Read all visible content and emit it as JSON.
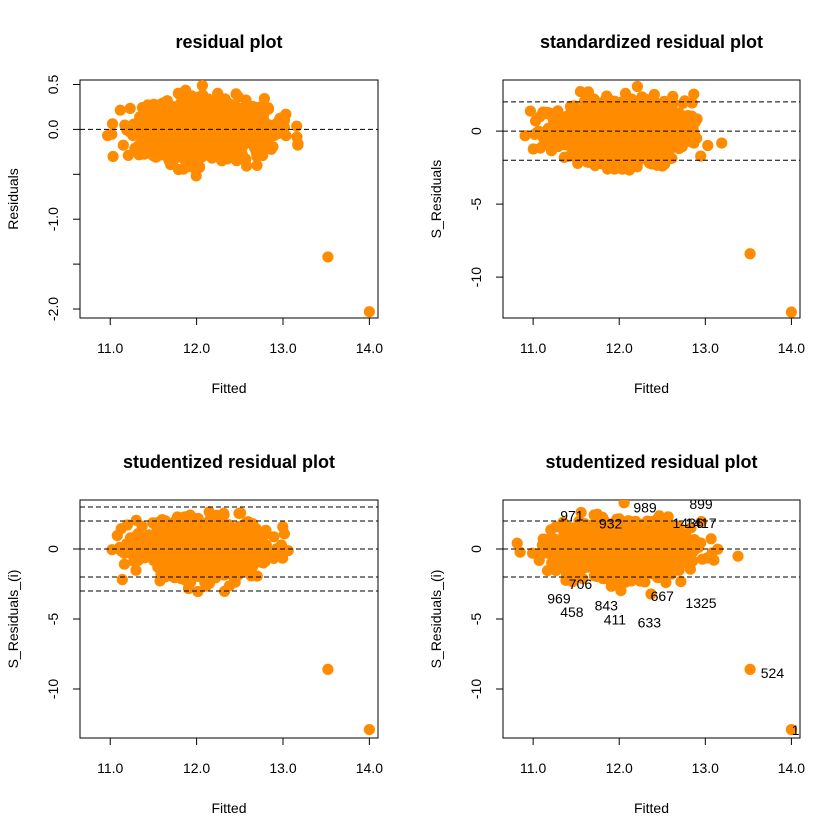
{
  "colors": {
    "point": "#ff8c00",
    "axis": "#000000",
    "refline": "#000000"
  },
  "chart_data": [
    {
      "type": "scatter",
      "title": "residual plot",
      "xlabel": "Fitted",
      "ylabel": "Residuals",
      "xlim": [
        10.65,
        14.1
      ],
      "ylim": [
        -2.1,
        0.55
      ],
      "xticks": [
        11.0,
        12.0,
        13.0,
        14.0
      ],
      "xtick_labels": [
        "11.0",
        "12.0",
        "13.0",
        "14.0"
      ],
      "yticks": [
        -2.0,
        -1.5,
        -1.0,
        -0.5,
        0.0,
        0.5
      ],
      "ytick_labels": [
        "-2.0",
        "",
        "-1.0",
        "",
        "0.0",
        "0.5"
      ],
      "hlines": [
        0
      ],
      "outliers": [
        {
          "x": 13.52,
          "y": -1.42
        },
        {
          "x": 14.0,
          "y": -2.03
        }
      ],
      "cloud": {
        "x_range": [
          10.78,
          13.45
        ],
        "y_range": [
          -0.85,
          0.55
        ],
        "x_center": 12.05,
        "y_center": 0.0,
        "y_spread": 0.16
      }
    },
    {
      "type": "scatter",
      "title": "standardized residual plot",
      "xlabel": "Fitted",
      "ylabel": "S_Residuals",
      "xlim": [
        10.65,
        14.1
      ],
      "ylim": [
        -12.8,
        3.5
      ],
      "xticks": [
        11.0,
        12.0,
        13.0,
        14.0
      ],
      "xtick_labels": [
        "11.0",
        "12.0",
        "13.0",
        "14.0"
      ],
      "yticks": [
        -10,
        -5,
        0
      ],
      "ytick_labels": [
        "-10",
        "-5",
        "0"
      ],
      "hlines": [
        2,
        0,
        -2
      ],
      "outliers": [
        {
          "x": 13.52,
          "y": -8.4
        },
        {
          "x": 14.0,
          "y": -12.4
        }
      ],
      "cloud": {
        "x_range": [
          10.78,
          13.45
        ],
        "y_range": [
          -4.9,
          3.2
        ],
        "x_center": 12.05,
        "y_center": 0.0,
        "y_spread": 0.95
      }
    },
    {
      "type": "scatter",
      "title": "studentized residual plot",
      "xlabel": "Fitted",
      "ylabel": "S_Residuals_(i)",
      "xlim": [
        10.65,
        14.1
      ],
      "ylim": [
        -13.5,
        3.5
      ],
      "xticks": [
        11.0,
        12.0,
        13.0,
        14.0
      ],
      "xtick_labels": [
        "11.0",
        "12.0",
        "13.0",
        "14.0"
      ],
      "yticks": [
        -10,
        -5,
        0
      ],
      "ytick_labels": [
        "-10",
        "-5",
        "0"
      ],
      "hlines": [
        3,
        2,
        0,
        -2,
        -3
      ],
      "outliers": [
        {
          "x": 13.52,
          "y": -8.6
        },
        {
          "x": 14.0,
          "y": -12.9
        }
      ],
      "cloud": {
        "x_range": [
          10.78,
          13.45
        ],
        "y_range": [
          -5.0,
          3.3
        ],
        "x_center": 12.05,
        "y_center": 0.0,
        "y_spread": 0.95
      }
    },
    {
      "type": "scatter",
      "title": "studentized residual plot",
      "xlabel": "Fitted",
      "ylabel": "S_Residuals_(i)",
      "xlim": [
        10.65,
        14.1
      ],
      "ylim": [
        -13.5,
        3.5
      ],
      "xticks": [
        11.0,
        12.0,
        13.0,
        14.0
      ],
      "xtick_labels": [
        "11.0",
        "12.0",
        "13.0",
        "14.0"
      ],
      "yticks": [
        -10,
        -5,
        0
      ],
      "ytick_labels": [
        "-10",
        "-5",
        "0"
      ],
      "hlines": [
        2,
        0,
        -2
      ],
      "outliers": [
        {
          "x": 13.52,
          "y": -8.6
        },
        {
          "x": 14.0,
          "y": -12.9
        }
      ],
      "cloud": {
        "x_range": [
          10.78,
          13.45
        ],
        "y_range": [
          -5.0,
          3.3
        ],
        "x_center": 12.05,
        "y_center": 0.0,
        "y_spread": 0.95
      },
      "point_labels": [
        {
          "text": "899",
          "x": 12.95,
          "y": 2.85
        },
        {
          "text": "971",
          "x": 11.45,
          "y": 2.05
        },
        {
          "text": "989",
          "x": 12.3,
          "y": 2.6
        },
        {
          "text": "1417",
          "x": 12.95,
          "y": 1.5
        },
        {
          "text": "1436",
          "x": 12.8,
          "y": 1.5
        },
        {
          "text": "932",
          "x": 11.9,
          "y": 1.45
        },
        {
          "text": "706",
          "x": 11.55,
          "y": -2.85
        },
        {
          "text": "969",
          "x": 11.3,
          "y": -3.9
        },
        {
          "text": "667",
          "x": 12.5,
          "y": -3.7
        },
        {
          "text": "1325",
          "x": 12.95,
          "y": -4.2
        },
        {
          "text": "843",
          "x": 11.85,
          "y": -4.4
        },
        {
          "text": "458",
          "x": 11.45,
          "y": -4.85
        },
        {
          "text": "411",
          "x": 11.95,
          "y": -5.4
        },
        {
          "text": "633",
          "x": 12.35,
          "y": -5.6
        },
        {
          "text": "524",
          "x": 13.78,
          "y": -9.2
        },
        {
          "text": "1",
          "x": 14.05,
          "y": -13.3
        }
      ]
    }
  ]
}
